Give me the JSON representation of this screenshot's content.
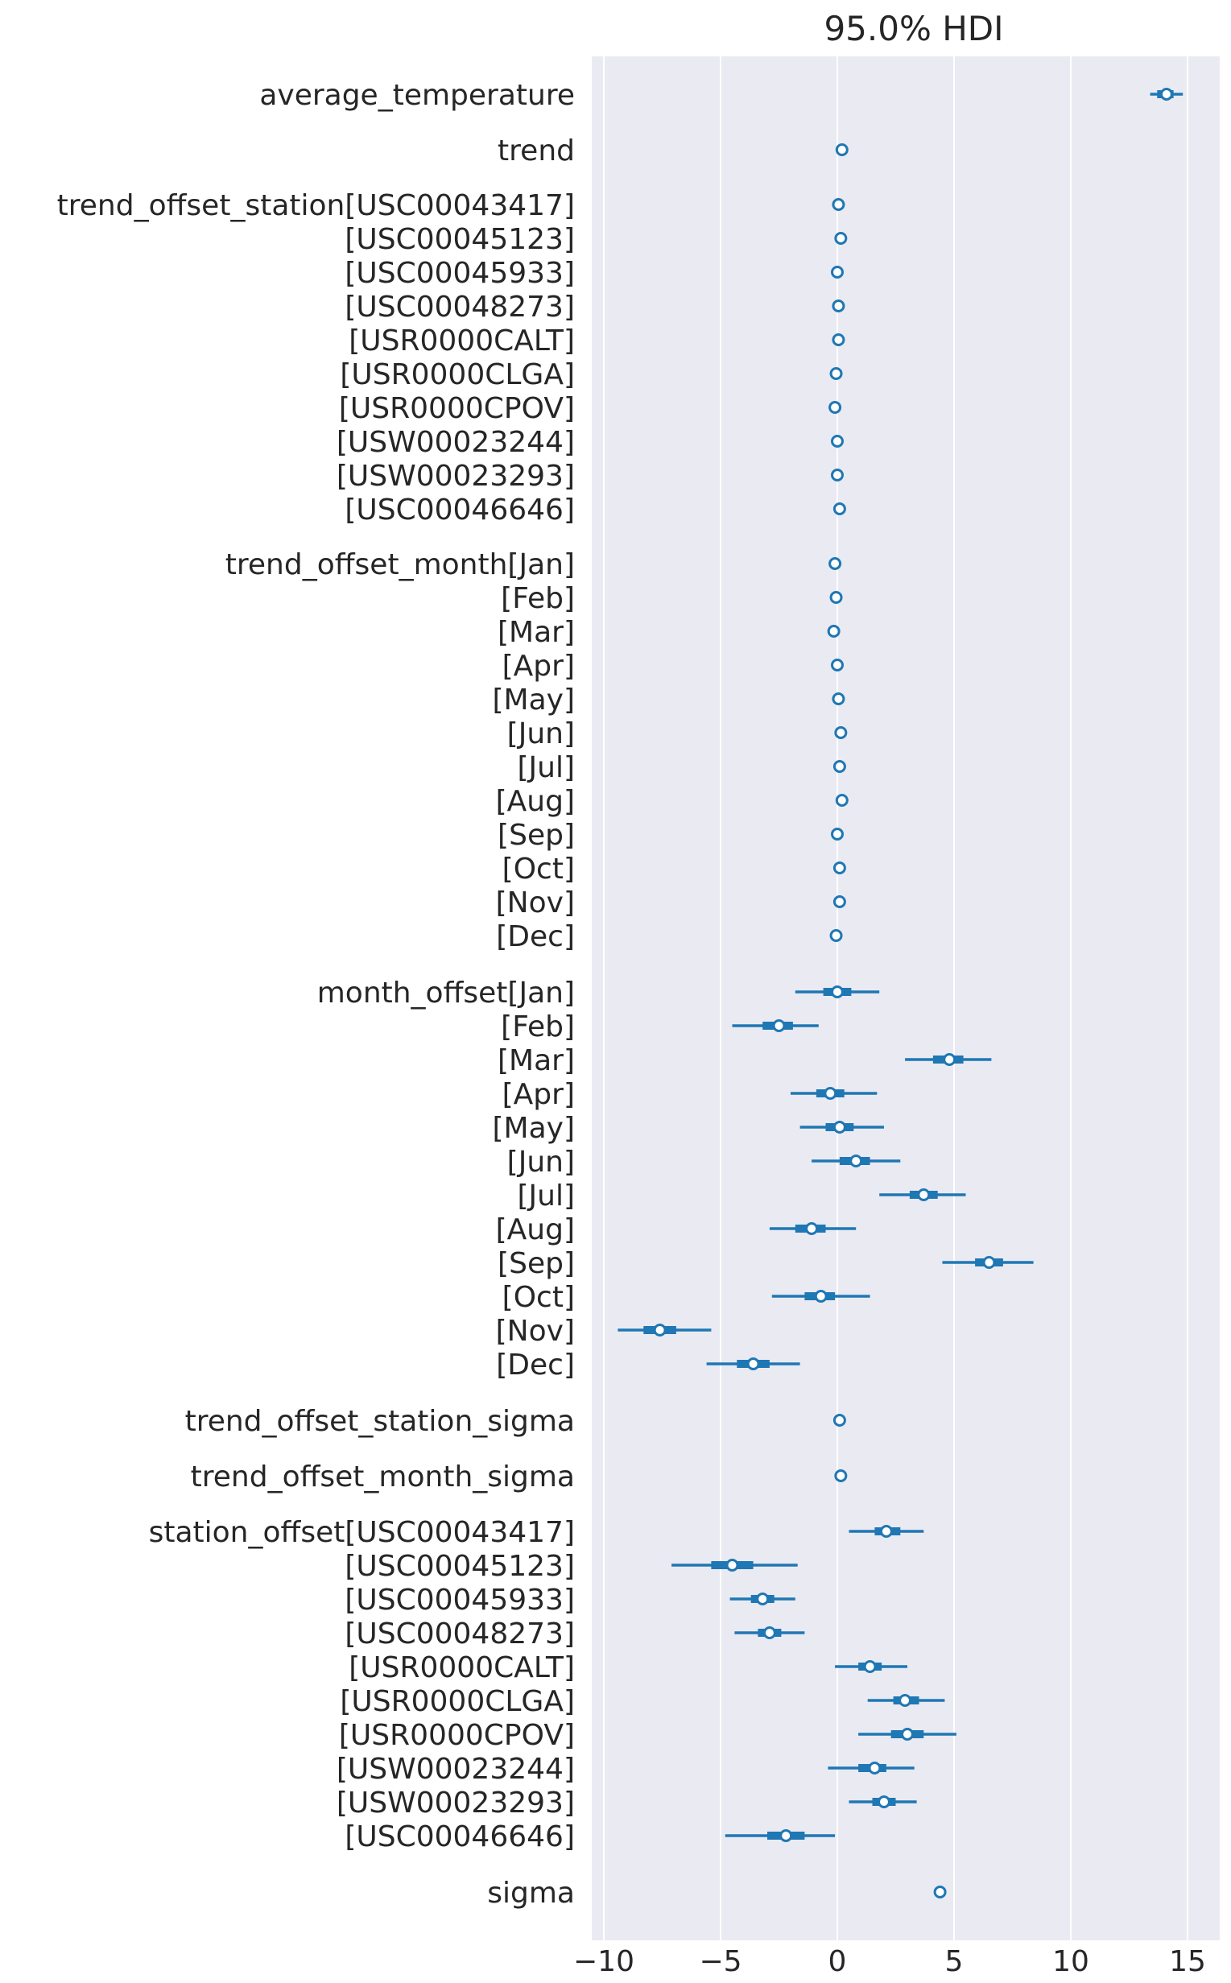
{
  "chart_data": {
    "type": "forest",
    "title": "95.0% HDI",
    "xlim": [
      -10.6,
      16.2
    ],
    "xticks": [
      -10,
      -5,
      0,
      5,
      10,
      15
    ],
    "xtick_labels": [
      "−10",
      "−5",
      "0",
      "5",
      "10",
      "15"
    ],
    "grid": true,
    "colors": {
      "plot_background": "#eaeaf2",
      "gridline": "#ffffff",
      "series": "#1f77b4",
      "marker_fill": "#ffffff",
      "text": "#262626"
    },
    "rows": [
      {
        "label": "average_temperature",
        "median": 14.1,
        "hdi_low": 13.4,
        "hdi_high": 14.8,
        "iqr_low": 13.7,
        "iqr_high": 14.4
      },
      {
        "label": "trend",
        "median": 0.2,
        "hdi_low": 0.2,
        "hdi_high": 0.2,
        "iqr_low": 0.2,
        "iqr_high": 0.2
      },
      {
        "label": "trend_offset_station[USC00043417]",
        "median": 0.05,
        "hdi_low": 0.05,
        "hdi_high": 0.05,
        "iqr_low": 0.05,
        "iqr_high": 0.05
      },
      {
        "label": "[USC00045123]",
        "median": 0.15,
        "hdi_low": 0.15,
        "hdi_high": 0.15,
        "iqr_low": 0.15,
        "iqr_high": 0.15
      },
      {
        "label": "[USC00045933]",
        "median": 0.0,
        "hdi_low": 0.0,
        "hdi_high": 0.0,
        "iqr_low": 0.0,
        "iqr_high": 0.0
      },
      {
        "label": "[USC00048273]",
        "median": 0.05,
        "hdi_low": 0.05,
        "hdi_high": 0.05,
        "iqr_low": 0.05,
        "iqr_high": 0.05
      },
      {
        "label": "[USR0000CALT]",
        "median": 0.05,
        "hdi_low": 0.05,
        "hdi_high": 0.05,
        "iqr_low": 0.05,
        "iqr_high": 0.05
      },
      {
        "label": "[USR0000CLGA]",
        "median": -0.05,
        "hdi_low": -0.05,
        "hdi_high": -0.05,
        "iqr_low": -0.05,
        "iqr_high": -0.05
      },
      {
        "label": "[USR0000CPOV]",
        "median": -0.1,
        "hdi_low": -0.1,
        "hdi_high": -0.1,
        "iqr_low": -0.1,
        "iqr_high": -0.1
      },
      {
        "label": "[USW00023244]",
        "median": 0.0,
        "hdi_low": 0.0,
        "hdi_high": 0.0,
        "iqr_low": 0.0,
        "iqr_high": 0.0
      },
      {
        "label": "[USW00023293]",
        "median": 0.0,
        "hdi_low": 0.0,
        "hdi_high": 0.0,
        "iqr_low": 0.0,
        "iqr_high": 0.0
      },
      {
        "label": "[USC00046646]",
        "median": 0.1,
        "hdi_low": 0.1,
        "hdi_high": 0.1,
        "iqr_low": 0.1,
        "iqr_high": 0.1
      },
      {
        "label": "trend_offset_month[Jan]",
        "median": -0.1,
        "hdi_low": -0.1,
        "hdi_high": -0.1,
        "iqr_low": -0.1,
        "iqr_high": -0.1
      },
      {
        "label": "[Feb]",
        "median": -0.05,
        "hdi_low": -0.05,
        "hdi_high": -0.05,
        "iqr_low": -0.05,
        "iqr_high": -0.05
      },
      {
        "label": "[Mar]",
        "median": -0.15,
        "hdi_low": -0.15,
        "hdi_high": -0.15,
        "iqr_low": -0.15,
        "iqr_high": -0.15
      },
      {
        "label": "[Apr]",
        "median": 0.0,
        "hdi_low": 0.0,
        "hdi_high": 0.0,
        "iqr_low": 0.0,
        "iqr_high": 0.0
      },
      {
        "label": "[May]",
        "median": 0.05,
        "hdi_low": 0.05,
        "hdi_high": 0.05,
        "iqr_low": 0.05,
        "iqr_high": 0.05
      },
      {
        "label": "[Jun]",
        "median": 0.15,
        "hdi_low": 0.15,
        "hdi_high": 0.15,
        "iqr_low": 0.15,
        "iqr_high": 0.15
      },
      {
        "label": "[Jul]",
        "median": 0.1,
        "hdi_low": 0.1,
        "hdi_high": 0.1,
        "iqr_low": 0.1,
        "iqr_high": 0.1
      },
      {
        "label": "[Aug]",
        "median": 0.2,
        "hdi_low": 0.2,
        "hdi_high": 0.2,
        "iqr_low": 0.2,
        "iqr_high": 0.2
      },
      {
        "label": "[Sep]",
        "median": 0.0,
        "hdi_low": 0.0,
        "hdi_high": 0.0,
        "iqr_low": 0.0,
        "iqr_high": 0.0
      },
      {
        "label": "[Oct]",
        "median": 0.1,
        "hdi_low": 0.1,
        "hdi_high": 0.1,
        "iqr_low": 0.1,
        "iqr_high": 0.1
      },
      {
        "label": "[Nov]",
        "median": 0.1,
        "hdi_low": 0.1,
        "hdi_high": 0.1,
        "iqr_low": 0.1,
        "iqr_high": 0.1
      },
      {
        "label": "[Dec]",
        "median": -0.05,
        "hdi_low": -0.05,
        "hdi_high": -0.05,
        "iqr_low": -0.05,
        "iqr_high": -0.05
      },
      {
        "label": "month_offset[Jan]",
        "median": 0.0,
        "hdi_low": -1.8,
        "hdi_high": 1.8,
        "iqr_low": -0.6,
        "iqr_high": 0.6
      },
      {
        "label": "[Feb]",
        "median": -2.5,
        "hdi_low": -4.5,
        "hdi_high": -0.8,
        "iqr_low": -3.2,
        "iqr_high": -1.9
      },
      {
        "label": "[Mar]",
        "median": 4.8,
        "hdi_low": 2.9,
        "hdi_high": 6.6,
        "iqr_low": 4.1,
        "iqr_high": 5.4
      },
      {
        "label": "[Apr]",
        "median": -0.3,
        "hdi_low": -2.0,
        "hdi_high": 1.7,
        "iqr_low": -0.9,
        "iqr_high": 0.3
      },
      {
        "label": "[May]",
        "median": 0.1,
        "hdi_low": -1.6,
        "hdi_high": 2.0,
        "iqr_low": -0.5,
        "iqr_high": 0.7
      },
      {
        "label": "[Jun]",
        "median": 0.8,
        "hdi_low": -1.1,
        "hdi_high": 2.7,
        "iqr_low": 0.1,
        "iqr_high": 1.4
      },
      {
        "label": "[Jul]",
        "median": 3.7,
        "hdi_low": 1.8,
        "hdi_high": 5.5,
        "iqr_low": 3.1,
        "iqr_high": 4.3
      },
      {
        "label": "[Aug]",
        "median": -1.1,
        "hdi_low": -2.9,
        "hdi_high": 0.8,
        "iqr_low": -1.8,
        "iqr_high": -0.5
      },
      {
        "label": "[Sep]",
        "median": 6.5,
        "hdi_low": 4.5,
        "hdi_high": 8.4,
        "iqr_low": 5.9,
        "iqr_high": 7.1
      },
      {
        "label": "[Oct]",
        "median": -0.7,
        "hdi_low": -2.8,
        "hdi_high": 1.4,
        "iqr_low": -1.4,
        "iqr_high": -0.1
      },
      {
        "label": "[Nov]",
        "median": -7.6,
        "hdi_low": -9.4,
        "hdi_high": -5.4,
        "iqr_low": -8.3,
        "iqr_high": -6.9
      },
      {
        "label": "[Dec]",
        "median": -3.6,
        "hdi_low": -5.6,
        "hdi_high": -1.6,
        "iqr_low": -4.3,
        "iqr_high": -2.9
      },
      {
        "label": "trend_offset_station_sigma",
        "median": 0.1,
        "hdi_low": 0.1,
        "hdi_high": 0.1,
        "iqr_low": 0.1,
        "iqr_high": 0.1
      },
      {
        "label": "trend_offset_month_sigma",
        "median": 0.15,
        "hdi_low": 0.15,
        "hdi_high": 0.15,
        "iqr_low": 0.15,
        "iqr_high": 0.15
      },
      {
        "label": "station_offset[USC00043417]",
        "median": 2.1,
        "hdi_low": 0.5,
        "hdi_high": 3.7,
        "iqr_low": 1.6,
        "iqr_high": 2.7
      },
      {
        "label": "[USC00045123]",
        "median": -4.5,
        "hdi_low": -7.1,
        "hdi_high": -1.7,
        "iqr_low": -5.4,
        "iqr_high": -3.6
      },
      {
        "label": "[USC00045933]",
        "median": -3.2,
        "hdi_low": -4.6,
        "hdi_high": -1.8,
        "iqr_low": -3.7,
        "iqr_high": -2.7
      },
      {
        "label": "[USC00048273]",
        "median": -2.9,
        "hdi_low": -4.4,
        "hdi_high": -1.4,
        "iqr_low": -3.4,
        "iqr_high": -2.4
      },
      {
        "label": "[USR0000CALT]",
        "median": 1.4,
        "hdi_low": -0.1,
        "hdi_high": 3.0,
        "iqr_low": 0.9,
        "iqr_high": 1.9
      },
      {
        "label": "[USR0000CLGA]",
        "median": 2.9,
        "hdi_low": 1.3,
        "hdi_high": 4.6,
        "iqr_low": 2.4,
        "iqr_high": 3.5
      },
      {
        "label": "[USR0000CPOV]",
        "median": 3.0,
        "hdi_low": 0.9,
        "hdi_high": 5.1,
        "iqr_low": 2.3,
        "iqr_high": 3.7
      },
      {
        "label": "[USW00023244]",
        "median": 1.6,
        "hdi_low": -0.4,
        "hdi_high": 3.3,
        "iqr_low": 0.9,
        "iqr_high": 2.1
      },
      {
        "label": "[USW00023293]",
        "median": 2.0,
        "hdi_low": 0.5,
        "hdi_high": 3.4,
        "iqr_low": 1.5,
        "iqr_high": 2.5
      },
      {
        "label": "[USC00046646]",
        "median": -2.2,
        "hdi_low": -4.8,
        "hdi_high": -0.1,
        "iqr_low": -3.0,
        "iqr_high": -1.4
      },
      {
        "label": "sigma",
        "median": 4.4,
        "hdi_low": 4.4,
        "hdi_high": 4.4,
        "iqr_low": 4.4,
        "iqr_high": 4.4
      }
    ]
  }
}
